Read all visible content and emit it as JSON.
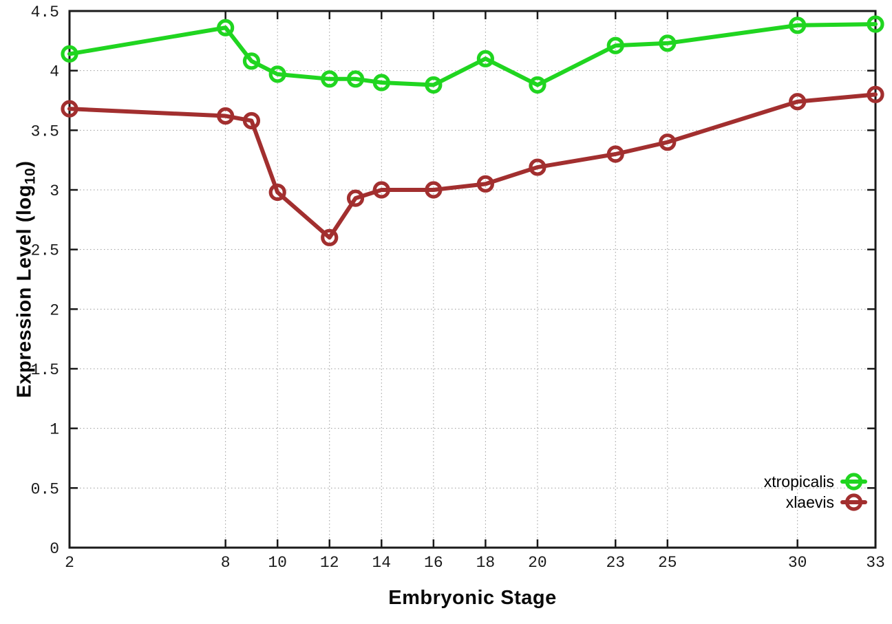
{
  "figure": {
    "xlabel": "Embryonic Stage",
    "ylabel": "Expression Level (log10)",
    "ylabel_parts": {
      "main": "Expression Level (log",
      "sub": "10",
      "end": ")"
    }
  },
  "chart_data": {
    "type": "line",
    "title": "",
    "xlabel": "Embryonic Stage",
    "ylabel": "Expression Level (log10)",
    "x": [
      2,
      8,
      9,
      10,
      12,
      13,
      14,
      16,
      18,
      20,
      23,
      25,
      30,
      33
    ],
    "series": [
      {
        "name": "xtropicalis",
        "color": "#20d520",
        "values": [
          4.14,
          4.36,
          4.08,
          3.97,
          3.93,
          3.93,
          3.9,
          3.88,
          4.1,
          3.88,
          4.21,
          4.23,
          4.38,
          4.39
        ]
      },
      {
        "name": "xlaevis",
        "color": "#a22f2f",
        "values": [
          3.68,
          3.62,
          3.58,
          2.98,
          2.6,
          2.93,
          3.0,
          3.0,
          3.05,
          3.19,
          3.3,
          3.4,
          3.74,
          3.8
        ]
      }
    ],
    "xlim": [
      2,
      33
    ],
    "ylim": [
      0,
      4.5
    ],
    "xticks": [
      2,
      8,
      10,
      12,
      14,
      16,
      18,
      20,
      23,
      25,
      30,
      33
    ],
    "yticks": [
      0,
      0.5,
      1,
      1.5,
      2,
      2.5,
      3,
      3.5,
      4,
      4.5
    ],
    "grid": true,
    "grid_color": "#9a9a9a",
    "axis_color": "#1a1a1a",
    "legend_position": "bottom-right",
    "marker": "open-circle",
    "line_style": "solid"
  }
}
